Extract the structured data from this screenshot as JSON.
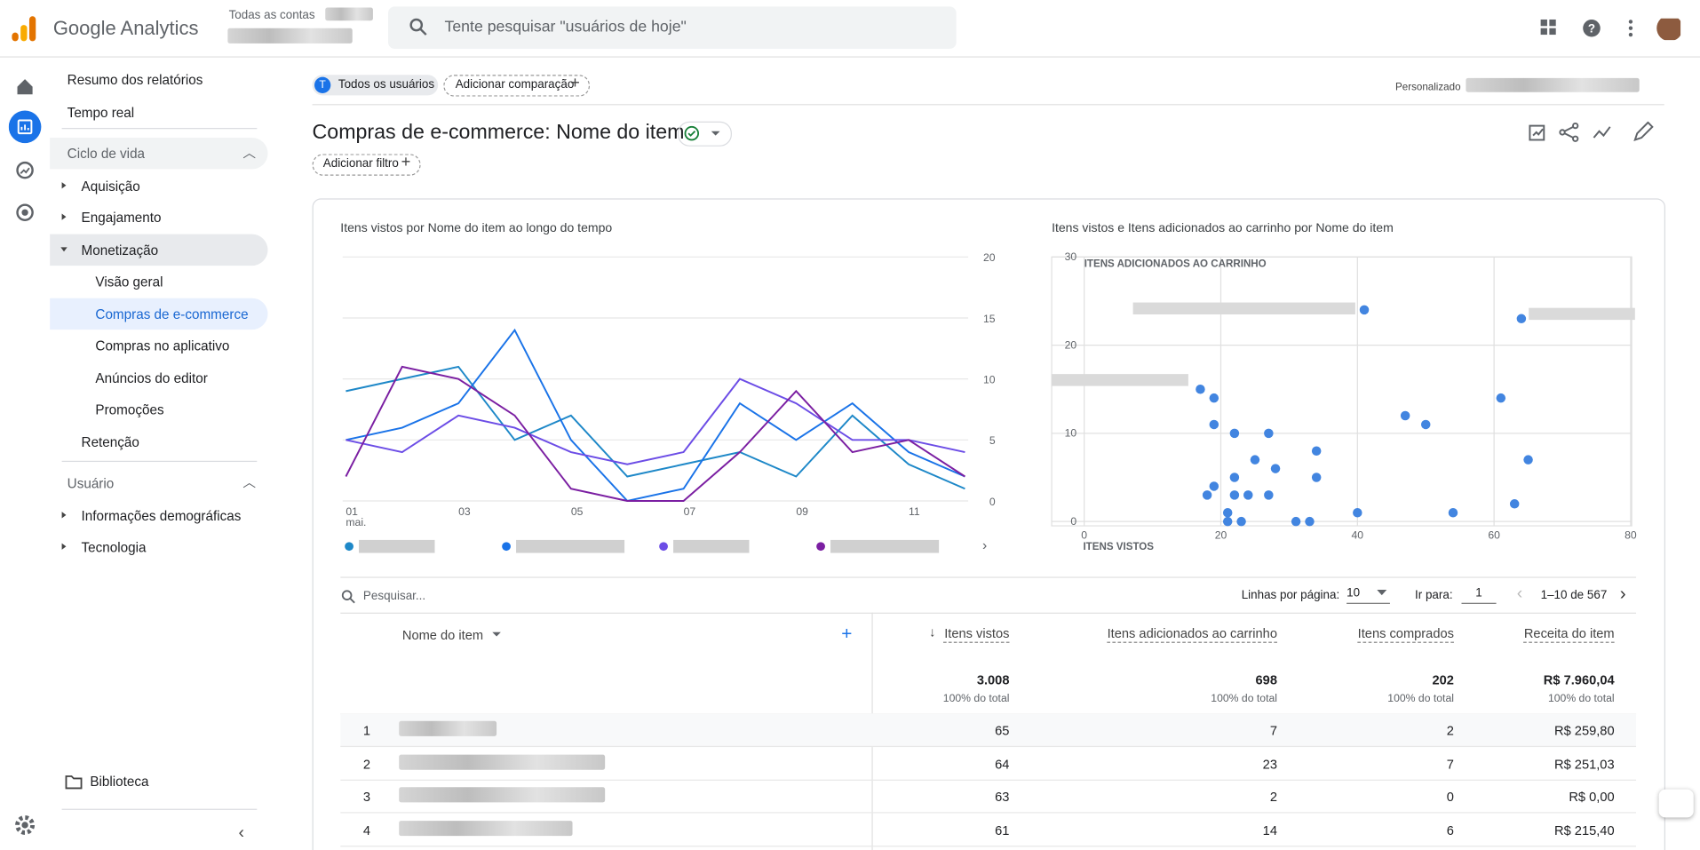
{
  "header": {
    "product": "Google Analytics",
    "breadcrumb": "Todas as contas",
    "search_placeholder": "Tente pesquisar \"usuários de hoje\""
  },
  "nav": {
    "top": [
      "Resumo dos relatórios",
      "Tempo real"
    ],
    "lifecycle": {
      "title": "Ciclo de vida",
      "items": [
        "Aquisição",
        "Engajamento",
        "Monetização"
      ],
      "sub": [
        "Visão geral",
        "Compras de e-commerce",
        "Compras no aplicativo",
        "Anúncios do editor",
        "Promoções"
      ],
      "after": "Retenção"
    },
    "user": {
      "title": "Usuário",
      "items": [
        "Informações demográficas",
        "Tecnologia"
      ]
    },
    "library": "Biblioteca"
  },
  "comparison": {
    "segment_initial": "T",
    "segment": "Todos os usuários",
    "add": "Adicionar comparação",
    "date_mode": "Personalizado"
  },
  "report": {
    "title": "Compras de e-commerce: Nome do item",
    "add_filter": "Adicionar filtro"
  },
  "line_chart": {
    "type": "line",
    "title": "Itens vistos por Nome do item ao longo do tempo",
    "categories": [
      "01",
      null,
      "03",
      null,
      "05",
      null,
      "07",
      null,
      "09",
      null,
      "11",
      null
    ],
    "x_sub_label": "mai.",
    "ylim": [
      0,
      20
    ],
    "yticks": [
      0,
      5,
      10,
      15,
      20
    ],
    "grid": true,
    "series": [
      {
        "color": "#1e88c8",
        "values": [
          9,
          10,
          11,
          5,
          7,
          2,
          3,
          4,
          2,
          7,
          3,
          1
        ]
      },
      {
        "color": "#1a73e8",
        "values": [
          5,
          6,
          8,
          14,
          5,
          0,
          1,
          8,
          5,
          8,
          4,
          2
        ]
      },
      {
        "color": "#6c4de6",
        "values": [
          5,
          4,
          7,
          6,
          4,
          3,
          4,
          10,
          8,
          5,
          5,
          4
        ]
      },
      {
        "color": "#7b1fa2",
        "values": [
          2,
          11,
          10,
          7,
          1,
          0,
          0,
          4,
          9,
          4,
          5,
          2
        ]
      }
    ]
  },
  "scatter_chart": {
    "type": "scatter",
    "title": "Itens vistos e Itens adicionados ao carrinho por Nome do item",
    "x_label": "ITENS VISTOS",
    "y_label": "ITENS ADICIONADOS AO CARRINHO",
    "color": "#4285e0",
    "xlim": [
      0,
      80
    ],
    "xticks": [
      0,
      20,
      40,
      60,
      80
    ],
    "ylim": [
      0,
      30
    ],
    "yticks": [
      0,
      10,
      20,
      30
    ],
    "x": [
      41,
      64,
      17,
      19,
      19,
      22,
      27,
      47,
      50,
      61,
      34,
      65,
      25,
      28,
      22,
      34,
      19,
      18,
      22,
      24,
      27,
      63,
      21,
      40,
      54,
      21,
      23,
      31,
      33
    ],
    "y": [
      24,
      23,
      15,
      14,
      11,
      10,
      10,
      12,
      11,
      14,
      8,
      7,
      7,
      6,
      5,
      5,
      4,
      3,
      3,
      3,
      3,
      2,
      1,
      1,
      1,
      0,
      0,
      0,
      0
    ]
  },
  "table": {
    "search_placeholder": "Pesquisar...",
    "rows_per_page_label": "Linhas por página:",
    "rows_per_page": 10,
    "goto_label": "Ir para:",
    "goto": 1,
    "range": "1–10 de 567",
    "columns": [
      "Nome do item",
      "Itens vistos",
      "Itens adicionados ao carrinho",
      "Itens comprados",
      "Receita do item"
    ],
    "totals": [
      "3.008",
      "698",
      "202",
      "R$ 7.960,04"
    ],
    "totals_note": "100% do total",
    "rows": [
      [
        1,
        65,
        7,
        2,
        "R$ 259,80"
      ],
      [
        2,
        64,
        23,
        7,
        "R$ 251,03"
      ],
      [
        3,
        63,
        2,
        0,
        "R$ 0,00"
      ],
      [
        4,
        61,
        14,
        6,
        "R$ 215,40"
      ]
    ]
  }
}
